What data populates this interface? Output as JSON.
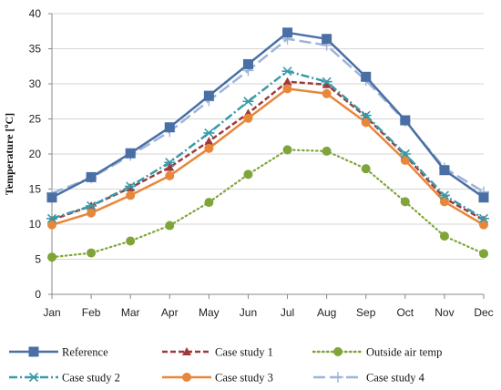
{
  "chart_data": {
    "type": "line",
    "categories": [
      "Jan",
      "Feb",
      "Mar",
      "Apr",
      "May",
      "Jun",
      "Jul",
      "Aug",
      "Sep",
      "Oct",
      "Nov",
      "Dec"
    ],
    "ylabel": "Temperature [ºC]",
    "xlabel": "",
    "ylim": [
      0,
      40
    ],
    "yticks": [
      0,
      5,
      10,
      15,
      20,
      25,
      30,
      35,
      40
    ],
    "grid": "horizontal",
    "legend_position": "bottom",
    "series": [
      {
        "name": "Reference",
        "color": "#4a6fa5",
        "marker": "square",
        "dash": "solid",
        "values": [
          13.8,
          16.7,
          20.1,
          23.8,
          28.3,
          32.8,
          37.3,
          36.4,
          31.0,
          24.8,
          17.7,
          13.8
        ]
      },
      {
        "name": "Case study 1",
        "color": "#a03a3a",
        "marker": "triangle",
        "dash": "dashed",
        "values": [
          10.6,
          12.6,
          15.2,
          18.1,
          21.8,
          25.8,
          30.3,
          29.9,
          25.3,
          19.8,
          13.7,
          10.6
        ]
      },
      {
        "name": "Outside air temp",
        "color": "#7fa53a",
        "marker": "circle",
        "dash": "dotted",
        "values": [
          5.3,
          5.9,
          7.6,
          9.8,
          13.1,
          17.1,
          20.6,
          20.4,
          17.9,
          13.2,
          8.3,
          5.8
        ]
      },
      {
        "name": "Case study 2",
        "color": "#3a9aa8",
        "marker": "asterisk",
        "dash": "dashdot",
        "values": [
          10.8,
          12.6,
          15.4,
          18.8,
          23.0,
          27.5,
          31.8,
          30.3,
          25.5,
          20.0,
          14.1,
          10.8
        ]
      },
      {
        "name": "Case study 3",
        "color": "#e8873a",
        "marker": "circle",
        "dash": "solid",
        "values": [
          9.9,
          11.6,
          14.1,
          16.9,
          20.8,
          25.1,
          29.3,
          28.6,
          24.5,
          19.1,
          13.2,
          9.9
        ]
      },
      {
        "name": "Case study 4",
        "color": "#9db3d8",
        "marker": "plus",
        "dash": "longdash",
        "values": [
          14.4,
          16.6,
          19.8,
          23.2,
          27.6,
          31.9,
          36.4,
          35.5,
          30.5,
          24.7,
          18.0,
          14.6
        ]
      }
    ]
  }
}
